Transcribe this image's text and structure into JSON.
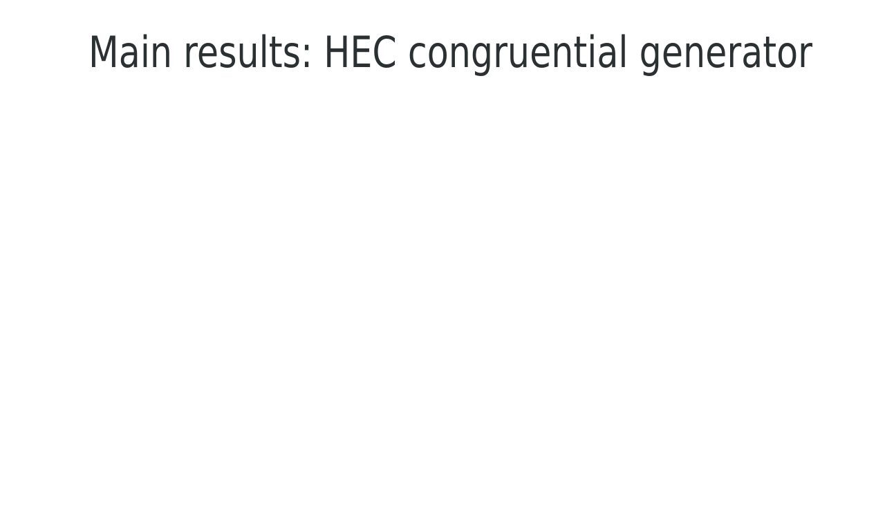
{
  "header": {
    "title": "Main results: HEC congruential generator"
  }
}
